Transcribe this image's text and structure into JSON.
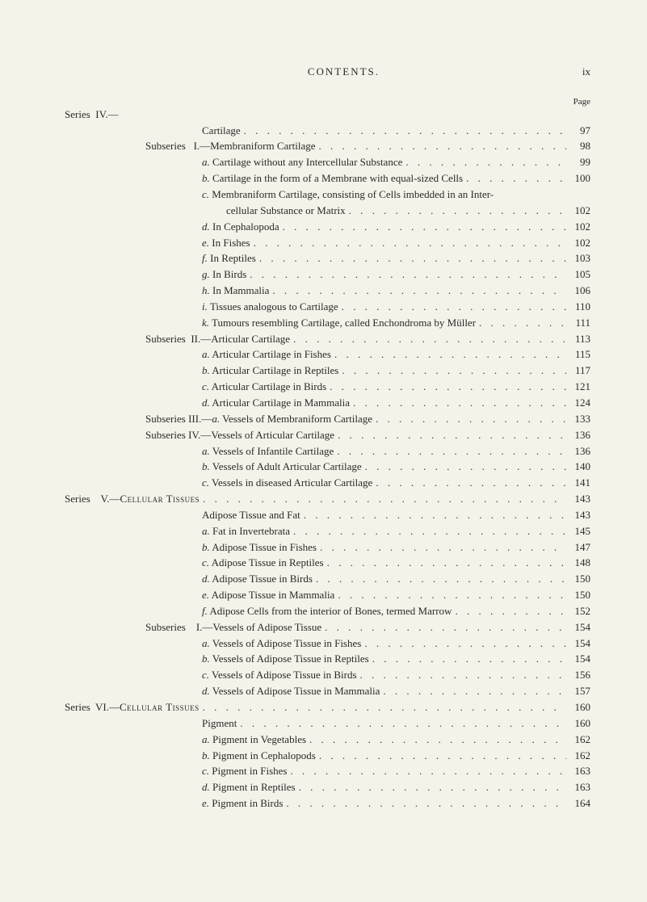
{
  "header": {
    "title": "CONTENTS.",
    "page_marker": "ix"
  },
  "page_label": "Page",
  "entries": [
    {
      "indent": 0,
      "prefix": "Series  IV.—",
      "text": "",
      "page": ""
    },
    {
      "indent": 170,
      "prefix": "",
      "text": "Cartilage",
      "page": "97"
    },
    {
      "indent": 100,
      "prefix": "Subseries   I.—",
      "text": "Membraniform Cartilage",
      "page": "98"
    },
    {
      "indent": 170,
      "prefix": "",
      "prefix_italic": "a.",
      "text": " Cartilage without any Intercellular Substance",
      "page": "99"
    },
    {
      "indent": 170,
      "prefix": "",
      "prefix_italic": "b.",
      "text": " Cartilage in the form of a Membrane with equal-sized Cells",
      "page": "100"
    },
    {
      "indent": 170,
      "prefix": "",
      "prefix_italic": "c.",
      "text": " Membraniform Cartilage, consisting of Cells imbedded in an Inter-",
      "page": "",
      "no_dots": true
    },
    {
      "indent": 200,
      "prefix": "",
      "text": "cellular Substance or Matrix",
      "page": "102"
    },
    {
      "indent": 170,
      "prefix": "",
      "prefix_italic": "d.",
      "text": " In Cephalopoda",
      "page": "102"
    },
    {
      "indent": 170,
      "prefix": "",
      "prefix_italic": "e.",
      "text": " In Fishes",
      "page": "102"
    },
    {
      "indent": 170,
      "prefix": "",
      "prefix_italic": "f.",
      "text": " In Reptiles",
      "page": "103"
    },
    {
      "indent": 170,
      "prefix": "",
      "prefix_italic": "g.",
      "text": " In Birds",
      "page": "105"
    },
    {
      "indent": 170,
      "prefix": "",
      "prefix_italic": "h.",
      "text": " In Mammalia",
      "page": "106"
    },
    {
      "indent": 170,
      "prefix": "",
      "prefix_italic": "i.",
      "text": " Tissues analogous to Cartilage",
      "page": "110"
    },
    {
      "indent": 170,
      "prefix": "",
      "prefix_italic": "k.",
      "text": " Tumours resembling Cartilage, called Enchondroma by Müller",
      "page": "111"
    },
    {
      "indent": 100,
      "prefix": "Subseries  II.—",
      "text": "Articular Cartilage",
      "page": "113"
    },
    {
      "indent": 170,
      "prefix": "",
      "prefix_italic": "a.",
      "text": " Articular Cartilage in Fishes",
      "page": "115"
    },
    {
      "indent": 170,
      "prefix": "",
      "prefix_italic": "b.",
      "text": " Articular Cartilage in Reptiles",
      "page": "117"
    },
    {
      "indent": 170,
      "prefix": "",
      "prefix_italic": "c.",
      "text": " Articular Cartilage in Birds",
      "page": "121"
    },
    {
      "indent": 170,
      "prefix": "",
      "prefix_italic": "d.",
      "text": " Articular Cartilage in Mammalia",
      "page": "124"
    },
    {
      "indent": 100,
      "prefix": "Subseries III.—",
      "prefix_italic": "a.",
      "text": " Vessels of Membraniform Cartilage",
      "page": "133"
    },
    {
      "indent": 100,
      "prefix": "Subseries IV.—",
      "text": "Vessels of Articular Cartilage",
      "page": "136"
    },
    {
      "indent": 170,
      "prefix": "",
      "prefix_italic": "a.",
      "text": " Vessels of Infantile Cartilage",
      "page": "136"
    },
    {
      "indent": 170,
      "prefix": "",
      "prefix_italic": "b.",
      "text": " Vessels of Adult Articular Cartilage",
      "page": "140"
    },
    {
      "indent": 170,
      "prefix": "",
      "prefix_italic": "c.",
      "text": " Vessels in diseased Articular Cartilage",
      "page": "141"
    },
    {
      "indent": 0,
      "prefix": "Series    V.—",
      "small_caps": "Cellular Tissues",
      "text": "",
      "page": "143"
    },
    {
      "indent": 170,
      "prefix": "",
      "text": "Adipose Tissue and Fat",
      "page": "143"
    },
    {
      "indent": 170,
      "prefix": "",
      "prefix_italic": "a.",
      "text": " Fat in Invertebrata",
      "page": "145"
    },
    {
      "indent": 170,
      "prefix": "",
      "prefix_italic": "b.",
      "text": " Adipose Tissue in Fishes",
      "page": "147"
    },
    {
      "indent": 170,
      "prefix": "",
      "prefix_italic": "c.",
      "text": " Adipose Tissue in Reptiles",
      "page": "148"
    },
    {
      "indent": 170,
      "prefix": "",
      "prefix_italic": "d.",
      "text": " Adipose Tissue in Birds",
      "page": "150"
    },
    {
      "indent": 170,
      "prefix": "",
      "prefix_italic": "e.",
      "text": " Adipose Tissue in Mammalia",
      "page": "150"
    },
    {
      "indent": 170,
      "prefix": "",
      "prefix_italic": "f.",
      "text": " Adipose Cells from the interior of Bones, termed Marrow",
      "page": "152"
    },
    {
      "indent": 100,
      "prefix": "Subseries    I.—",
      "text": "Vessels of Adipose Tissue",
      "page": "154"
    },
    {
      "indent": 170,
      "prefix": "",
      "prefix_italic": "a.",
      "text": " Vessels of Adipose Tissue in Fishes",
      "page": "154"
    },
    {
      "indent": 170,
      "prefix": "",
      "prefix_italic": "b.",
      "text": " Vessels of Adipose Tissue in Reptiles",
      "page": "154"
    },
    {
      "indent": 170,
      "prefix": "",
      "prefix_italic": "c.",
      "text": " Vessels of Adipose Tissue in Birds",
      "page": "156"
    },
    {
      "indent": 170,
      "prefix": "",
      "prefix_italic": "d.",
      "text": " Vessels of Adipose Tissue in Mammalia",
      "page": "157"
    },
    {
      "indent": 0,
      "prefix": "Series  VI.—",
      "small_caps": "Cellular Tissues",
      "text": "",
      "page": "160"
    },
    {
      "indent": 170,
      "prefix": "",
      "text": "Pigment",
      "page": "160"
    },
    {
      "indent": 170,
      "prefix": "",
      "prefix_italic": "a.",
      "text": " Pigment in Vegetables",
      "page": "162"
    },
    {
      "indent": 170,
      "prefix": "",
      "prefix_italic": "b.",
      "text": " Pigment in Cephalopods",
      "page": "162"
    },
    {
      "indent": 170,
      "prefix": "",
      "prefix_italic": "c.",
      "text": " Pigment in Fishes",
      "page": "163"
    },
    {
      "indent": 170,
      "prefix": "",
      "prefix_italic": "d.",
      "text": " Pigment in Reptiles",
      "page": "163"
    },
    {
      "indent": 170,
      "prefix": "",
      "prefix_italic": "e.",
      "text": " Pigment in Birds",
      "page": "164"
    }
  ],
  "styles": {
    "background_color": "#f5f2ea",
    "text_color": "#2a2a2a",
    "font_family": "Times New Roman, Georgia, serif",
    "font_size_body": 13,
    "font_size_page_label": 11,
    "line_height": 1.45,
    "dot_letter_spacing": 4
  }
}
